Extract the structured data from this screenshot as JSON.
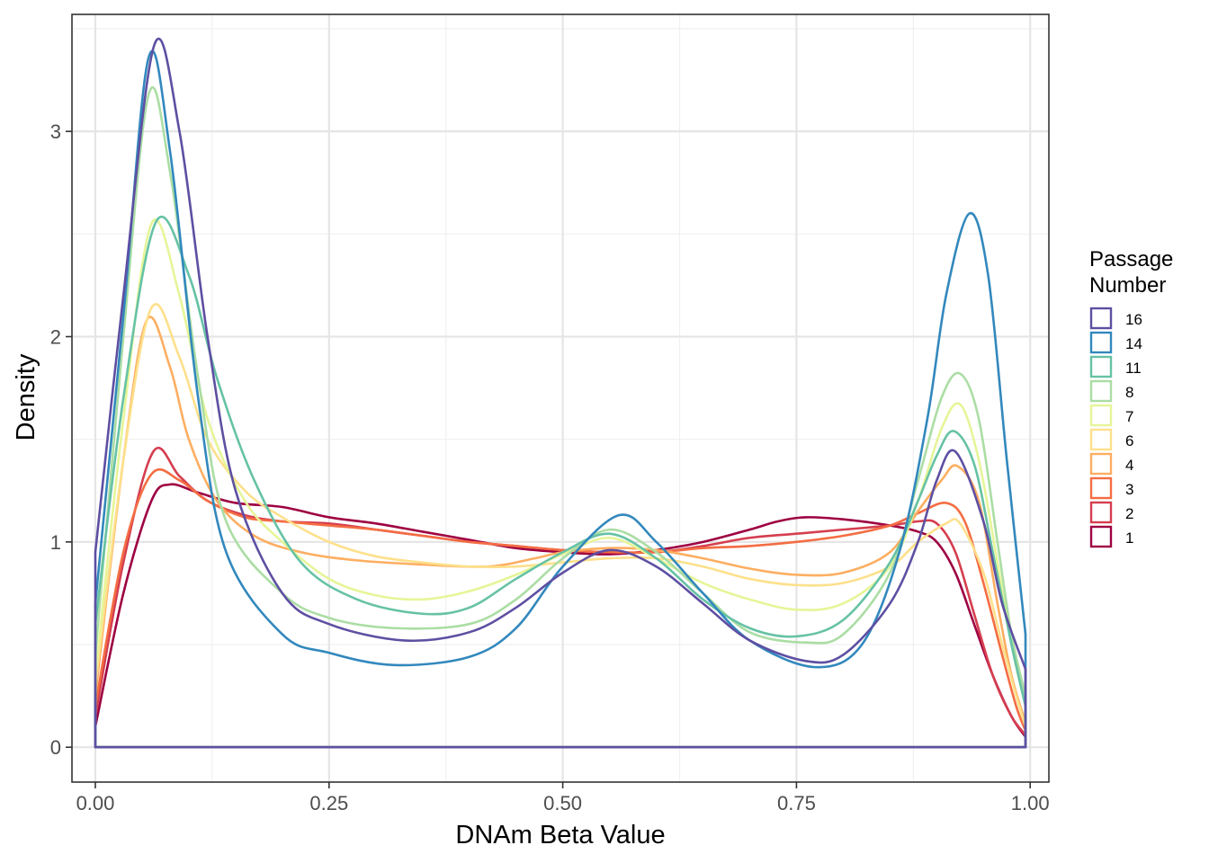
{
  "chart_data": {
    "type": "line",
    "subtype": "density",
    "title": "",
    "xlabel": "DNAm Beta Value",
    "ylabel": "Density",
    "xlim": [
      -0.025,
      1.02
    ],
    "ylim": [
      -0.17,
      3.57
    ],
    "x_ticks": [
      0,
      0.25,
      0.5,
      0.75,
      1
    ],
    "x_tick_labels": [
      "0.00",
      "0.25",
      "0.50",
      "0.75",
      "1.00"
    ],
    "y_ticks": [
      0,
      1,
      2,
      3
    ],
    "y_tick_labels": [
      "0",
      "1",
      "2",
      "3"
    ],
    "grid": true,
    "legend": {
      "title_lines": [
        "Passage",
        "Number"
      ],
      "position": "right"
    },
    "series": [
      {
        "name": "16",
        "color": "#5E4FA2",
        "x": [
          0,
          0.03,
          0.063,
          0.09,
          0.12,
          0.15,
          0.2,
          0.25,
          0.33,
          0.4,
          0.45,
          0.5,
          0.55,
          0.6,
          0.65,
          0.7,
          0.76,
          0.8,
          0.85,
          0.88,
          0.9,
          0.92,
          0.95,
          0.97,
          0.995
        ],
        "y": [
          0.95,
          2.2,
          3.42,
          3.0,
          2.0,
          1.25,
          0.75,
          0.6,
          0.52,
          0.56,
          0.68,
          0.85,
          0.96,
          0.88,
          0.7,
          0.52,
          0.42,
          0.45,
          0.7,
          1.0,
          1.3,
          1.44,
          1.1,
          0.7,
          0.38
        ]
      },
      {
        "name": "14",
        "color": "#3288BD",
        "x": [
          0,
          0.03,
          0.057,
          0.08,
          0.11,
          0.14,
          0.2,
          0.25,
          0.32,
          0.4,
          0.45,
          0.5,
          0.56,
          0.6,
          0.65,
          0.7,
          0.77,
          0.82,
          0.86,
          0.89,
          0.91,
          0.935,
          0.955,
          0.975,
          0.995
        ],
        "y": [
          0.7,
          2.1,
          3.36,
          2.9,
          1.7,
          0.95,
          0.55,
          0.46,
          0.4,
          0.44,
          0.58,
          0.88,
          1.13,
          1.0,
          0.75,
          0.52,
          0.39,
          0.5,
          0.95,
          1.6,
          2.2,
          2.6,
          2.3,
          1.4,
          0.55
        ]
      },
      {
        "name": "11",
        "color": "#66C2A5",
        "x": [
          0,
          0.03,
          0.065,
          0.1,
          0.13,
          0.17,
          0.22,
          0.28,
          0.35,
          0.4,
          0.45,
          0.5,
          0.55,
          0.6,
          0.65,
          0.7,
          0.75,
          0.8,
          0.85,
          0.88,
          0.9,
          0.918,
          0.94,
          0.96,
          0.98,
          0.995
        ],
        "y": [
          0.6,
          1.7,
          2.56,
          2.3,
          1.8,
          1.3,
          0.9,
          0.72,
          0.65,
          0.68,
          0.82,
          0.95,
          1.04,
          0.92,
          0.72,
          0.58,
          0.54,
          0.62,
          0.9,
          1.2,
          1.42,
          1.54,
          1.38,
          0.95,
          0.5,
          0.2
        ]
      },
      {
        "name": "8",
        "color": "#ABDDA4",
        "x": [
          0,
          0.03,
          0.057,
          0.08,
          0.11,
          0.14,
          0.2,
          0.25,
          0.32,
          0.4,
          0.45,
          0.5,
          0.55,
          0.6,
          0.65,
          0.7,
          0.76,
          0.8,
          0.85,
          0.88,
          0.905,
          0.925,
          0.945,
          0.965,
          0.98,
          0.995
        ],
        "y": [
          0.45,
          2.0,
          3.18,
          2.8,
          1.8,
          1.1,
          0.75,
          0.63,
          0.58,
          0.6,
          0.72,
          0.92,
          1.06,
          0.95,
          0.75,
          0.56,
          0.51,
          0.55,
          0.85,
          1.3,
          1.7,
          1.82,
          1.6,
          1.0,
          0.55,
          0.25
        ]
      },
      {
        "name": "7",
        "color": "#E6F598",
        "x": [
          0,
          0.03,
          0.06,
          0.09,
          0.12,
          0.16,
          0.2,
          0.25,
          0.3,
          0.35,
          0.4,
          0.45,
          0.5,
          0.55,
          0.6,
          0.65,
          0.7,
          0.75,
          0.8,
          0.85,
          0.88,
          0.905,
          0.925,
          0.945,
          0.965,
          0.98,
          0.995
        ],
        "y": [
          0.35,
          1.6,
          2.55,
          2.2,
          1.6,
          1.2,
          1.0,
          0.82,
          0.74,
          0.72,
          0.76,
          0.84,
          0.94,
          1.02,
          0.92,
          0.8,
          0.72,
          0.67,
          0.7,
          0.88,
          1.2,
          1.55,
          1.67,
          1.4,
          0.9,
          0.5,
          0.2
        ]
      },
      {
        "name": "6",
        "color": "#FEE08B",
        "x": [
          0,
          0.03,
          0.06,
          0.09,
          0.12,
          0.16,
          0.2,
          0.25,
          0.3,
          0.35,
          0.4,
          0.45,
          0.5,
          0.55,
          0.6,
          0.65,
          0.7,
          0.75,
          0.8,
          0.85,
          0.88,
          0.91,
          0.925,
          0.95,
          0.97,
          0.985,
          0.995
        ],
        "y": [
          0.3,
          1.4,
          2.14,
          1.9,
          1.5,
          1.25,
          1.12,
          1.0,
          0.93,
          0.9,
          0.88,
          0.88,
          0.9,
          0.92,
          0.92,
          0.88,
          0.82,
          0.79,
          0.8,
          0.88,
          1.0,
          1.09,
          1.09,
          0.85,
          0.5,
          0.25,
          0.1
        ]
      },
      {
        "name": "4",
        "color": "#FDAE61",
        "x": [
          0,
          0.03,
          0.055,
          0.08,
          0.1,
          0.13,
          0.17,
          0.22,
          0.28,
          0.35,
          0.42,
          0.47,
          0.5,
          0.55,
          0.6,
          0.65,
          0.7,
          0.75,
          0.8,
          0.85,
          0.88,
          0.905,
          0.922,
          0.945,
          0.965,
          0.98,
          0.995
        ],
        "y": [
          0.25,
          1.4,
          2.08,
          1.85,
          1.5,
          1.2,
          1.03,
          0.95,
          0.91,
          0.89,
          0.88,
          0.92,
          0.95,
          0.97,
          0.96,
          0.92,
          0.87,
          0.84,
          0.85,
          0.95,
          1.15,
          1.3,
          1.37,
          1.2,
          0.7,
          0.35,
          0.12
        ]
      },
      {
        "name": "3",
        "color": "#F46D43",
        "x": [
          0,
          0.03,
          0.06,
          0.09,
          0.12,
          0.16,
          0.2,
          0.25,
          0.3,
          0.35,
          0.4,
          0.45,
          0.5,
          0.55,
          0.6,
          0.65,
          0.7,
          0.75,
          0.8,
          0.85,
          0.88,
          0.91,
          0.93,
          0.95,
          0.97,
          0.985,
          0.995
        ],
        "y": [
          0.2,
          0.95,
          1.33,
          1.3,
          1.2,
          1.12,
          1.1,
          1.08,
          1.06,
          1.03,
          1.0,
          0.98,
          0.96,
          0.95,
          0.95,
          0.97,
          0.98,
          1.0,
          1.03,
          1.08,
          1.14,
          1.19,
          1.1,
          0.8,
          0.45,
          0.2,
          0.08
        ]
      },
      {
        "name": "2",
        "color": "#D53E4F",
        "x": [
          0,
          0.03,
          0.062,
          0.09,
          0.12,
          0.16,
          0.2,
          0.25,
          0.3,
          0.35,
          0.4,
          0.45,
          0.5,
          0.55,
          0.6,
          0.65,
          0.7,
          0.75,
          0.8,
          0.85,
          0.88,
          0.9,
          0.92,
          0.94,
          0.96,
          0.98,
          0.995
        ],
        "y": [
          0.15,
          0.9,
          1.44,
          1.32,
          1.2,
          1.13,
          1.1,
          1.09,
          1.06,
          1.03,
          1.0,
          0.98,
          0.96,
          0.95,
          0.95,
          0.98,
          1.02,
          1.04,
          1.06,
          1.08,
          1.1,
          1.09,
          0.95,
          0.65,
          0.35,
          0.15,
          0.06
        ]
      },
      {
        "name": "1",
        "color": "#9E0142",
        "x": [
          0,
          0.03,
          0.06,
          0.08,
          0.11,
          0.15,
          0.2,
          0.25,
          0.3,
          0.35,
          0.4,
          0.45,
          0.5,
          0.55,
          0.6,
          0.65,
          0.7,
          0.73,
          0.76,
          0.8,
          0.85,
          0.88,
          0.9,
          0.92,
          0.94,
          0.96,
          0.98,
          0.995
        ],
        "y": [
          0.1,
          0.75,
          1.2,
          1.28,
          1.24,
          1.19,
          1.17,
          1.12,
          1.09,
          1.05,
          1.01,
          0.97,
          0.95,
          0.94,
          0.96,
          1.0,
          1.06,
          1.1,
          1.12,
          1.11,
          1.08,
          1.05,
          1.0,
          0.85,
          0.6,
          0.35,
          0.15,
          0.05
        ]
      }
    ]
  }
}
